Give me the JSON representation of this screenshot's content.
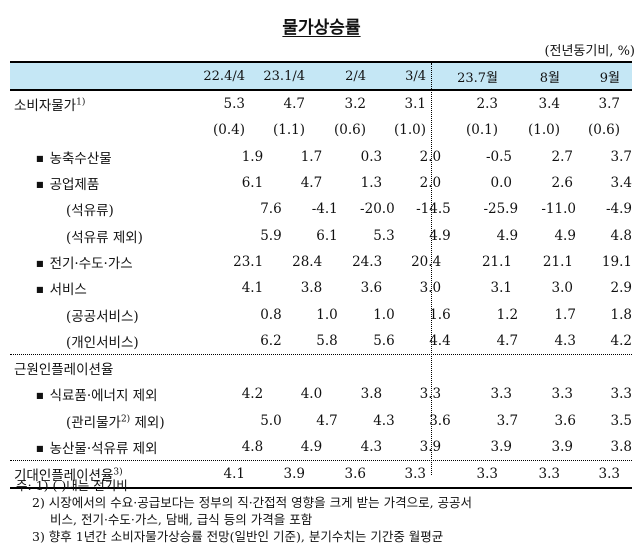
{
  "title": "물가상승률",
  "unit": "(전년동기비, %)",
  "columns": [
    "22.4/4",
    "23.1/4",
    "2/4",
    "3/4",
    "23.7월",
    "8월",
    "9월"
  ],
  "rows": [
    {
      "label": "소비자물가",
      "sup": "1)",
      "level": 0,
      "values": [
        "5.3",
        "4.7",
        "3.2",
        "3.1",
        "2.3",
        "3.4",
        "3.7"
      ]
    },
    {
      "label": "",
      "level": 0,
      "values": [
        "(0.4)",
        "(1.1)",
        "(0.6)",
        "(1.0)",
        "(0.1)",
        "(1.0)",
        "(0.6)"
      ]
    },
    {
      "label": "농축수산물",
      "level": 1,
      "bullet": true,
      "values": [
        "1.9",
        "1.7",
        "0.3",
        "2.0",
        "-0.5",
        "2.7",
        "3.7"
      ]
    },
    {
      "label": "공업제품",
      "level": 1,
      "bullet": true,
      "values": [
        "6.1",
        "4.7",
        "1.3",
        "2.0",
        "0.0",
        "2.6",
        "3.4"
      ]
    },
    {
      "label": "(석유류)",
      "level": 2,
      "values": [
        "7.6",
        "-4.1",
        "-20.0",
        "-14.5",
        "-25.9",
        "-11.0",
        "-4.9"
      ]
    },
    {
      "label": "(석유류 제외)",
      "level": 2,
      "values": [
        "5.9",
        "6.1",
        "5.3",
        "4.9",
        "4.9",
        "4.9",
        "4.8"
      ]
    },
    {
      "label": "전기·수도·가스",
      "level": 1,
      "bullet": true,
      "values": [
        "23.1",
        "28.4",
        "24.3",
        "20.4",
        "21.1",
        "21.1",
        "19.1"
      ]
    },
    {
      "label": "서비스",
      "level": 1,
      "bullet": true,
      "values": [
        "4.1",
        "3.8",
        "3.6",
        "3.0",
        "3.1",
        "3.0",
        "2.9"
      ]
    },
    {
      "label": "(공공서비스)",
      "level": 2,
      "values": [
        "0.8",
        "1.0",
        "1.0",
        "1.6",
        "1.2",
        "1.7",
        "1.8"
      ]
    },
    {
      "label": "(개인서비스)",
      "level": 2,
      "values": [
        "6.2",
        "5.8",
        "5.6",
        "4.4",
        "4.7",
        "4.3",
        "4.2"
      ]
    }
  ],
  "core_section": {
    "label": "근원인플레이션율",
    "rows": [
      {
        "label": "식료품·에너지 제외",
        "level": 1,
        "bullet": true,
        "values": [
          "4.2",
          "4.0",
          "3.8",
          "3.3",
          "3.3",
          "3.3",
          "3.3"
        ]
      },
      {
        "label": "(관리물가",
        "sup": "2)",
        "suffix": " 제외)",
        "level": 2,
        "values": [
          "5.0",
          "4.7",
          "4.3",
          "3.6",
          "3.7",
          "3.6",
          "3.5"
        ]
      },
      {
        "label": "농산물·석유류 제외",
        "level": 1,
        "bullet": true,
        "values": [
          "4.8",
          "4.9",
          "4.3",
          "3.9",
          "3.9",
          "3.9",
          "3.8"
        ]
      }
    ]
  },
  "expected": {
    "label": "기대인플레이션율",
    "sup": "3)",
    "values": [
      "4.1",
      "3.9",
      "3.6",
      "3.3",
      "3.3",
      "3.3",
      "3.3"
    ]
  },
  "notes": {
    "prefix": "주:",
    "n1": "1) (    )내는 전기비",
    "n2a": "2) 시장에서의 수요·공급보다는 정부의 직·간접적 영향을 크게 받는 가격으로, 공공서",
    "n2b": "비스, 전기·수도·가스, 담배, 급식 등의 가격을 포함",
    "n3": "3) 향후 1년간 소비자물가상승률 전망(일반인 기준), 분기수치는 기간중 월평균"
  },
  "bullet_glyph": "■"
}
